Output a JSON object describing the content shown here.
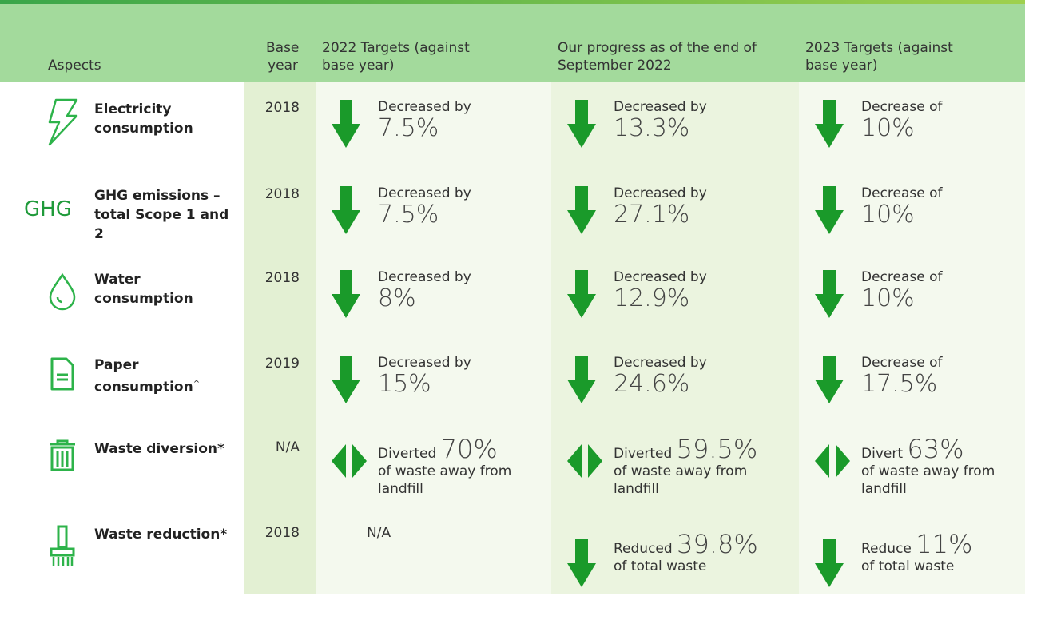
{
  "header": {
    "columns": [
      "Aspects",
      "Base year",
      "2022 Targets (against base year)",
      "Our progress as of the end of September 2022",
      "2023 Targets (against base year)"
    ]
  },
  "rows": [
    {
      "aspect": "Electricity consumption",
      "base_year": "2018",
      "targets_2022": {
        "label": "Decreased by",
        "value": "7.5%"
      },
      "progress": {
        "label": "Decreased by",
        "value": "13.3%"
      },
      "targets_2023": {
        "label": "Decrease of",
        "value": "10%"
      }
    },
    {
      "icon_text": "GHG",
      "aspect": "GHG emissions – total Scope 1 and 2",
      "base_year": "2018",
      "targets_2022": {
        "label": "Decreased by",
        "value": "7.5%"
      },
      "progress": {
        "label": "Decreased by",
        "value": "27.1%"
      },
      "targets_2023": {
        "label": "Decrease of",
        "value": "10%"
      }
    },
    {
      "aspect": "Water consumption",
      "base_year": "2018",
      "targets_2022": {
        "label": "Decreased by",
        "value": "8%"
      },
      "progress": {
        "label": "Decreased by",
        "value": "12.9%"
      },
      "targets_2023": {
        "label": "Decrease of",
        "value": "10%"
      }
    },
    {
      "aspect": "Paper consumption",
      "aspect_mark": "^",
      "base_year": "2019",
      "targets_2022": {
        "label": "Decreased by",
        "value": "15%"
      },
      "progress": {
        "label": "Decreased by",
        "value": "24.6%"
      },
      "targets_2023": {
        "label": "Decrease of",
        "value": "17.5%"
      }
    },
    {
      "aspect": "Waste diversion*",
      "base_year": "N/A",
      "targets_2022": {
        "label": "Diverted",
        "value": "70%",
        "note": "of waste away from landfill"
      },
      "progress": {
        "label": "Diverted",
        "value": "59.5%",
        "note": "of waste away from landfill"
      },
      "targets_2023": {
        "label": "Divert",
        "value": "63%",
        "note": "of waste away from landfill"
      }
    },
    {
      "aspect": "Waste reduction*",
      "base_year": "2018",
      "targets_2022": "N/A",
      "progress": {
        "label": "Reduced",
        "value": "39.8%",
        "note": "of total waste"
      },
      "targets_2023": {
        "label": "Reduce",
        "value": "11%",
        "note": "of total waste"
      }
    }
  ]
}
